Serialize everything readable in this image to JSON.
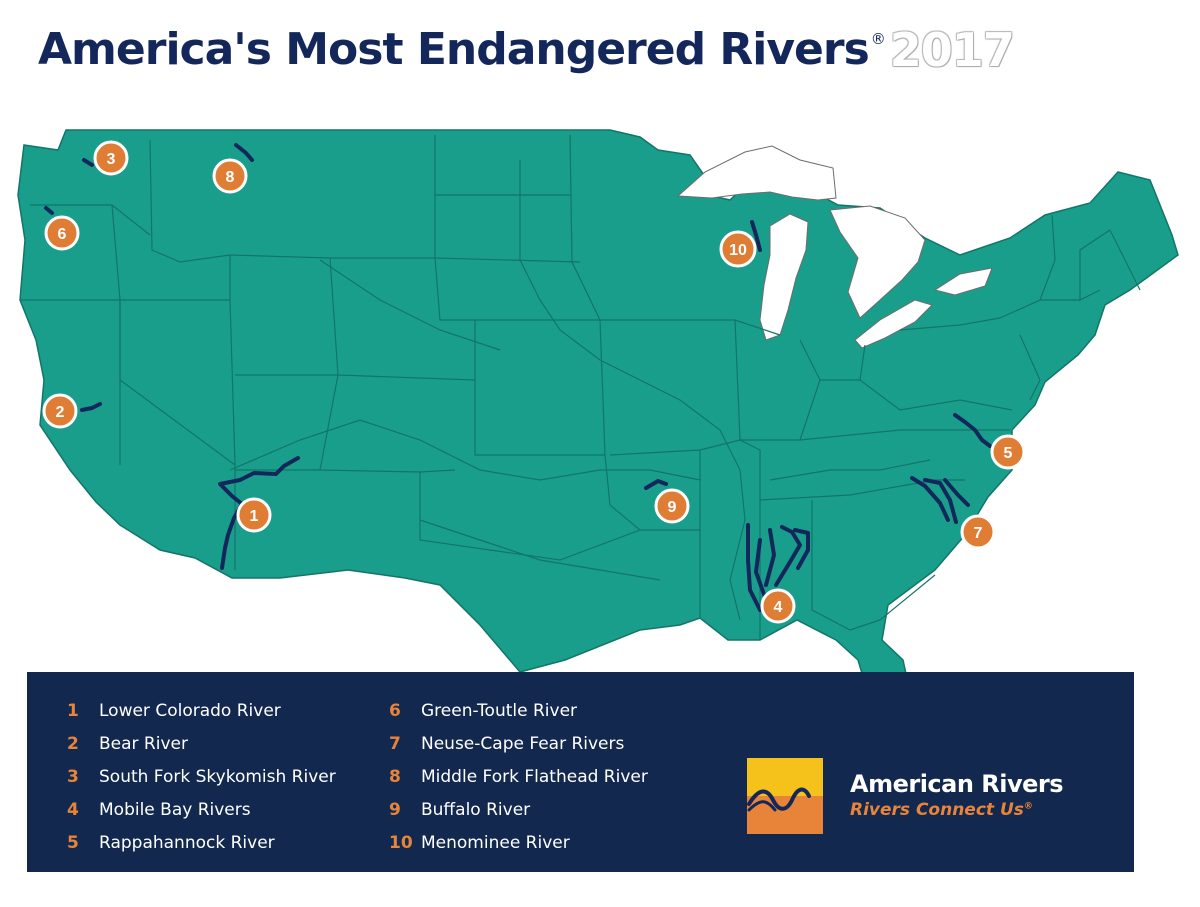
{
  "title": {
    "main": "America's Most Endangered Rivers",
    "registered": "®",
    "year": "2017"
  },
  "colors": {
    "land": "#1a9e8c",
    "border": "#127568",
    "river": "#14275a",
    "marker": "#e07d35",
    "legend_bg": "#13284e",
    "logo_yellow": "#f4c21b",
    "logo_orange": "#e8843a"
  },
  "markers": [
    {
      "num": "1",
      "river": "Lower Colorado River"
    },
    {
      "num": "2",
      "river": "Bear River"
    },
    {
      "num": "3",
      "river": "South Fork Skykomish River"
    },
    {
      "num": "4",
      "river": "Mobile Bay Rivers"
    },
    {
      "num": "5",
      "river": "Rappahannock River"
    },
    {
      "num": "6",
      "river": "Green-Toutle River"
    },
    {
      "num": "7",
      "river": "Neuse-Cape Fear Rivers"
    },
    {
      "num": "8",
      "river": "Middle Fork Flathead River"
    },
    {
      "num": "9",
      "river": "Buffalo River"
    },
    {
      "num": "10",
      "river": "Menominee River"
    }
  ],
  "legend": {
    "left": [
      {
        "num": "1",
        "name": "Lower Colorado River"
      },
      {
        "num": "2",
        "name": "Bear River"
      },
      {
        "num": "3",
        "name": "South Fork Skykomish River"
      },
      {
        "num": "4",
        "name": "Mobile Bay Rivers"
      },
      {
        "num": "5",
        "name": "Rappahannock River"
      }
    ],
    "right": [
      {
        "num": "6",
        "name": "Green-Toutle River"
      },
      {
        "num": "7",
        "name": "Neuse-Cape Fear Rivers"
      },
      {
        "num": "8",
        "name": "Middle Fork Flathead River"
      },
      {
        "num": "9",
        "name": "Buffalo River"
      },
      {
        "num": "10",
        "name": "Menominee River"
      }
    ]
  },
  "logo": {
    "name": "American Rivers",
    "tagline": "Rivers Connect Us",
    "tagline_reg": "®"
  }
}
